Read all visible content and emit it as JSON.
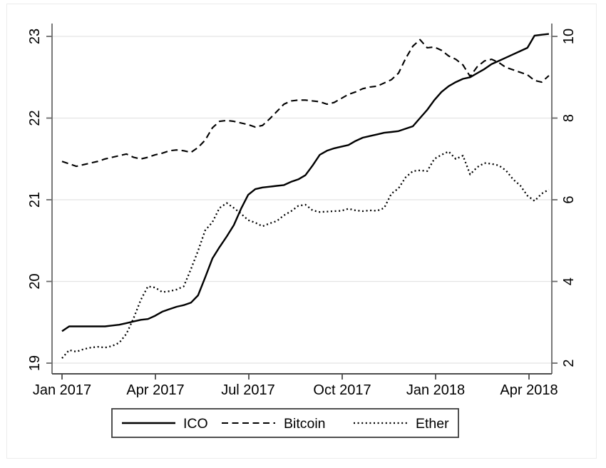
{
  "figure": {
    "background": "#ffffff",
    "frame_color": "#ececec"
  },
  "colors": {
    "axis": "#6a6a6a",
    "x_axis": "#4d4d4d",
    "grid": "#e4e4e4",
    "line": "#000000",
    "text": "#000000",
    "legend_border": "#3c3c3c"
  },
  "chart_data": {
    "type": "line",
    "title": "",
    "xlabel": "",
    "ylabel_left": "",
    "ylabel_right": "",
    "grid": "horizontal",
    "legend_position": "bottom-center",
    "x_axis": {
      "unit": "date",
      "range_years": [
        2017.0,
        2018.31
      ],
      "ticks": [
        {
          "label": "Jan 2017",
          "year": 2017.0
        },
        {
          "label": "Apr 2017",
          "year": 2017.25
        },
        {
          "label": "Jul 2017",
          "year": 2017.5
        },
        {
          "label": "Oct 2017",
          "year": 2017.75
        },
        {
          "label": "Jan 2018",
          "year": 2018.0
        },
        {
          "label": "Apr 2018",
          "year": 2018.25
        }
      ]
    },
    "y_axis_left": {
      "range": [
        18.87,
        23.16
      ],
      "ticks": [
        {
          "label": "19",
          "value": 19
        },
        {
          "label": "20",
          "value": 20
        },
        {
          "label": "21",
          "value": 21
        },
        {
          "label": "22",
          "value": 22
        },
        {
          "label": "23",
          "value": 23
        }
      ]
    },
    "y_axis_right": {
      "range": [
        1.74,
        10.32
      ],
      "ticks": [
        {
          "label": "2",
          "value": 2
        },
        {
          "label": "4",
          "value": 4
        },
        {
          "label": "6",
          "value": 6
        },
        {
          "label": "8",
          "value": 8
        },
        {
          "label": "10",
          "value": 10
        }
      ]
    },
    "series": [
      {
        "name": "ICO",
        "axis": "left",
        "line_style": "solid",
        "color": "#000000",
        "start_year": 2017.0,
        "step_days": 7,
        "values": [
          19.39,
          19.45,
          19.45,
          19.45,
          19.45,
          19.45,
          19.45,
          19.46,
          19.47,
          19.49,
          19.51,
          19.53,
          19.54,
          19.58,
          19.63,
          19.66,
          19.69,
          19.71,
          19.74,
          19.83,
          20.05,
          20.28,
          20.42,
          20.55,
          20.69,
          20.89,
          21.06,
          21.13,
          21.15,
          21.16,
          21.17,
          21.18,
          21.22,
          21.25,
          21.3,
          21.42,
          21.55,
          21.6,
          21.63,
          21.65,
          21.67,
          21.72,
          21.76,
          21.78,
          21.8,
          21.82,
          21.83,
          21.84,
          21.87,
          21.9,
          22.0,
          22.1,
          22.22,
          22.32,
          22.39,
          22.44,
          22.48,
          22.5,
          22.55,
          22.6,
          22.66,
          22.7,
          22.74,
          22.78,
          22.82,
          22.86,
          23.01,
          23.02,
          23.03
        ]
      },
      {
        "name": "Bitcoin",
        "axis": "left",
        "line_style": "dashed",
        "color": "#000000",
        "start_year": 2017.0,
        "step_days": 7,
        "values": [
          21.47,
          21.44,
          21.41,
          21.43,
          21.45,
          21.47,
          21.5,
          21.52,
          21.54,
          21.56,
          21.52,
          21.5,
          21.52,
          21.55,
          21.57,
          21.6,
          21.61,
          21.6,
          21.58,
          21.64,
          21.73,
          21.88,
          21.96,
          21.97,
          21.96,
          21.94,
          21.92,
          21.89,
          21.91,
          21.99,
          22.08,
          22.17,
          22.21,
          22.22,
          22.22,
          22.21,
          22.2,
          22.17,
          22.19,
          22.24,
          22.29,
          22.32,
          22.36,
          22.38,
          22.39,
          22.43,
          22.47,
          22.55,
          22.73,
          22.88,
          22.96,
          22.86,
          22.87,
          22.83,
          22.76,
          22.72,
          22.65,
          22.51,
          22.63,
          22.7,
          22.72,
          22.68,
          22.62,
          22.59,
          22.56,
          22.53,
          22.46,
          22.44,
          22.52
        ]
      },
      {
        "name": "Ether",
        "axis": "right",
        "line_style": "dotted",
        "color": "#000000",
        "start_year": 2017.0,
        "step_days": 7,
        "values": [
          2.12,
          2.32,
          2.28,
          2.34,
          2.38,
          2.4,
          2.38,
          2.42,
          2.5,
          2.72,
          3.1,
          3.55,
          3.88,
          3.85,
          3.74,
          3.76,
          3.8,
          3.88,
          4.3,
          4.75,
          5.25,
          5.45,
          5.8,
          5.92,
          5.8,
          5.66,
          5.5,
          5.44,
          5.35,
          5.42,
          5.48,
          5.62,
          5.72,
          5.85,
          5.88,
          5.74,
          5.7,
          5.71,
          5.72,
          5.73,
          5.78,
          5.74,
          5.72,
          5.74,
          5.73,
          5.8,
          6.15,
          6.28,
          6.55,
          6.7,
          6.72,
          6.7,
          7.0,
          7.1,
          7.18,
          7.0,
          7.08,
          6.62,
          6.8,
          6.9,
          6.88,
          6.84,
          6.72,
          6.5,
          6.35,
          6.1,
          5.97,
          6.15,
          6.25
        ]
      }
    ],
    "legend": {
      "items": [
        {
          "label": "ICO",
          "style": "solid"
        },
        {
          "label": "Bitcoin",
          "style": "dashed"
        },
        {
          "label": "Ether",
          "style": "dotted"
        }
      ]
    }
  }
}
